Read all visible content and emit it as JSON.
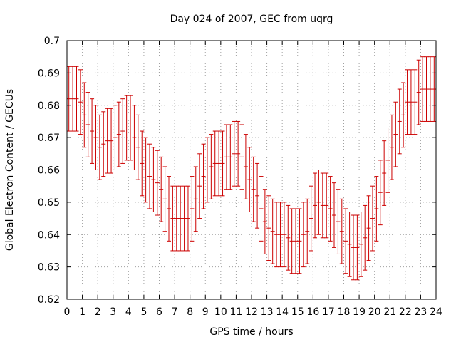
{
  "chart_data": {
    "type": "scatter",
    "title": "Day 024 of 2007, GEC from uqrg",
    "xlabel": "GPS time / hours",
    "ylabel": "Global Electron Content / GECUs",
    "xlim": [
      0,
      24
    ],
    "ylim": [
      0.62,
      0.7
    ],
    "xticks": [
      "0",
      "1",
      "2",
      "3",
      "4",
      "5",
      "6",
      "7",
      "8",
      "9",
      "10",
      "11",
      "12",
      "13",
      "14",
      "15",
      "16",
      "17",
      "18",
      "19",
      "20",
      "21",
      "22",
      "23",
      "24"
    ],
    "yticks": [
      "0.62",
      "0.63",
      "0.64",
      "0.65",
      "0.66",
      "0.67",
      "0.68",
      "0.69",
      "0.7"
    ],
    "grid": true,
    "legend": "none",
    "colors": {
      "series": "#cc0000",
      "grid": "#a0a0a0",
      "axis": "#000000"
    },
    "error_halfwidth": 0.01,
    "series": [
      {
        "x": [
          0.125,
          0.375,
          0.625,
          0.875,
          1.125,
          1.375,
          1.625,
          1.875,
          2.125,
          2.375,
          2.625,
          2.875,
          3.125,
          3.375,
          3.625,
          3.875,
          4.125,
          4.375,
          4.625,
          4.875,
          5.125,
          5.375,
          5.625,
          5.875,
          6.125,
          6.375,
          6.625,
          6.875,
          7.125,
          7.375,
          7.625,
          7.875,
          8.125,
          8.375,
          8.625,
          8.875,
          9.125,
          9.375,
          9.625,
          9.875,
          10.125,
          10.375,
          10.625,
          10.875,
          11.125,
          11.375,
          11.625,
          11.875,
          12.125,
          12.375,
          12.625,
          12.875,
          13.125,
          13.375,
          13.625,
          13.875,
          14.125,
          14.375,
          14.625,
          14.875,
          15.125,
          15.375,
          15.625,
          15.875,
          16.125,
          16.375,
          16.625,
          16.875,
          17.125,
          17.375,
          17.625,
          17.875,
          18.125,
          18.375,
          18.625,
          18.875,
          19.125,
          19.375,
          19.625,
          19.875,
          20.125,
          20.375,
          20.625,
          20.875,
          21.125,
          21.375,
          21.625,
          21.875,
          22.125,
          22.375,
          22.625,
          22.875,
          23.125,
          23.375,
          23.625,
          23.875
        ],
        "y": [
          0.682,
          0.682,
          0.682,
          0.681,
          0.677,
          0.674,
          0.672,
          0.67,
          0.667,
          0.668,
          0.669,
          0.669,
          0.67,
          0.671,
          0.672,
          0.673,
          0.673,
          0.67,
          0.667,
          0.662,
          0.66,
          0.658,
          0.657,
          0.656,
          0.654,
          0.651,
          0.648,
          0.645,
          0.645,
          0.645,
          0.645,
          0.645,
          0.648,
          0.651,
          0.655,
          0.658,
          0.66,
          0.661,
          0.662,
          0.662,
          0.662,
          0.664,
          0.664,
          0.665,
          0.665,
          0.664,
          0.661,
          0.657,
          0.654,
          0.652,
          0.648,
          0.644,
          0.642,
          0.641,
          0.64,
          0.64,
          0.64,
          0.639,
          0.638,
          0.638,
          0.638,
          0.64,
          0.641,
          0.645,
          0.649,
          0.65,
          0.649,
          0.649,
          0.648,
          0.646,
          0.644,
          0.641,
          0.638,
          0.637,
          0.636,
          0.636,
          0.637,
          0.639,
          0.642,
          0.645,
          0.648,
          0.653,
          0.659,
          0.663,
          0.667,
          0.671,
          0.675,
          0.677,
          0.681,
          0.681,
          0.681,
          0.684,
          0.685,
          0.685,
          0.685,
          0.685
        ]
      }
    ]
  }
}
